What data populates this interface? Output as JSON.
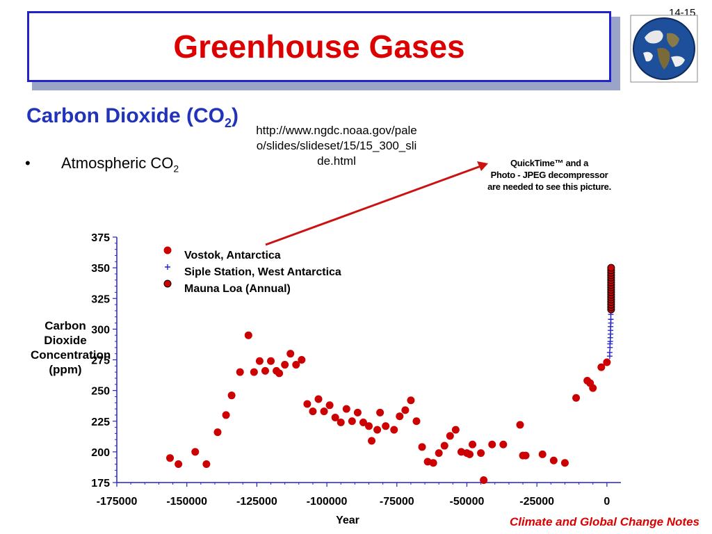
{
  "slide": {
    "number": "14-15",
    "title": "Greenhouse Gases",
    "subtitle_main": "Carbon Dioxide (CO",
    "subtitle_sub": "2",
    "subtitle_end": ")",
    "bullet_symbol": "•",
    "bullet_main": "Atmospheric CO",
    "bullet_sub": "2",
    "url": "http://www.ngdc.noaa.gov/paleo/slides/slideset/15/15_300_slide.html",
    "quicktime_line1": "QuickTime™ and a",
    "quicktime_line2": "Photo - JPEG decompressor",
    "quicktime_line3": "are needed to see this picture.",
    "footer": "Climate and Global Change Notes",
    "accent_title": "#dd0000",
    "accent_subtitle": "#2233bb",
    "box_border": "#2222cc"
  },
  "chart_data": {
    "type": "scatter",
    "title": "",
    "xlabel": "Year",
    "ylabel_lines": [
      "Carbon Dioxide",
      "Concentration",
      "(ppm)"
    ],
    "xlim": [
      -175000,
      5000
    ],
    "ylim": [
      175,
      375
    ],
    "xticks": [
      -175000,
      -150000,
      -125000,
      -100000,
      -75000,
      -50000,
      -25000,
      0
    ],
    "yticks": [
      175,
      200,
      225,
      250,
      275,
      300,
      325,
      350,
      375
    ],
    "legend_position": "top-left",
    "grid": false,
    "series": [
      {
        "name": "Vostok, Antarctica",
        "marker": "circle",
        "color": "#cc0000",
        "x": [
          -156000,
          -153000,
          -147000,
          -143000,
          -139000,
          -136000,
          -134000,
          -131000,
          -128000,
          -126000,
          -124000,
          -122000,
          -120000,
          -118000,
          -117000,
          -115000,
          -113000,
          -111000,
          -109000,
          -107000,
          -105000,
          -103000,
          -101000,
          -99000,
          -97000,
          -95000,
          -93000,
          -91000,
          -89000,
          -87000,
          -85000,
          -84000,
          -82000,
          -81000,
          -79000,
          -76000,
          -74000,
          -72000,
          -70000,
          -68000,
          -66000,
          -64000,
          -62000,
          -60000,
          -58000,
          -56000,
          -54000,
          -52000,
          -50000,
          -49000,
          -48000,
          -45000,
          -44000,
          -41000,
          -37000,
          -31000,
          -30000,
          -29000,
          -23000,
          -19000,
          -15000,
          -11000,
          -7000,
          -6000,
          -5000,
          -2000,
          0
        ],
        "y": [
          195,
          190,
          200,
          190,
          216,
          230,
          246,
          265,
          295,
          265,
          274,
          266,
          274,
          266,
          264,
          271,
          280,
          271,
          275,
          239,
          233,
          243,
          233,
          238,
          228,
          224,
          235,
          225,
          232,
          224,
          221,
          209,
          218,
          232,
          221,
          218,
          229,
          234,
          242,
          225,
          204,
          192,
          191,
          199,
          205,
          213,
          218,
          200,
          199,
          198,
          206,
          199,
          177,
          206,
          206,
          222,
          197,
          197,
          198,
          193,
          191,
          244,
          258,
          256,
          252,
          269,
          273
        ]
      },
      {
        "name": "Siple Station, West Antarctica",
        "marker": "plus",
        "color": "#2222cc",
        "x": [
          1000,
          1000,
          1100,
          1100,
          1200,
          1200,
          1300,
          1300,
          1300,
          1400,
          1400,
          1400
        ],
        "y": [
          278,
          281,
          285,
          288,
          290,
          293,
          296,
          299,
          302,
          305,
          308,
          312
        ]
      },
      {
        "name": "Mauna Loa (Annual)",
        "marker": "circle-outlined",
        "color": "#cc0000",
        "x": [
          1500,
          1500,
          1500,
          1500,
          1500,
          1500,
          1500,
          1500,
          1500,
          1500,
          1500,
          1500,
          1500,
          1500,
          1500,
          1500,
          1500,
          1500
        ],
        "y": [
          316,
          318,
          320,
          322,
          324,
          326,
          328,
          330,
          332,
          334,
          336,
          338,
          340,
          342,
          344,
          346,
          348,
          350
        ]
      }
    ]
  }
}
